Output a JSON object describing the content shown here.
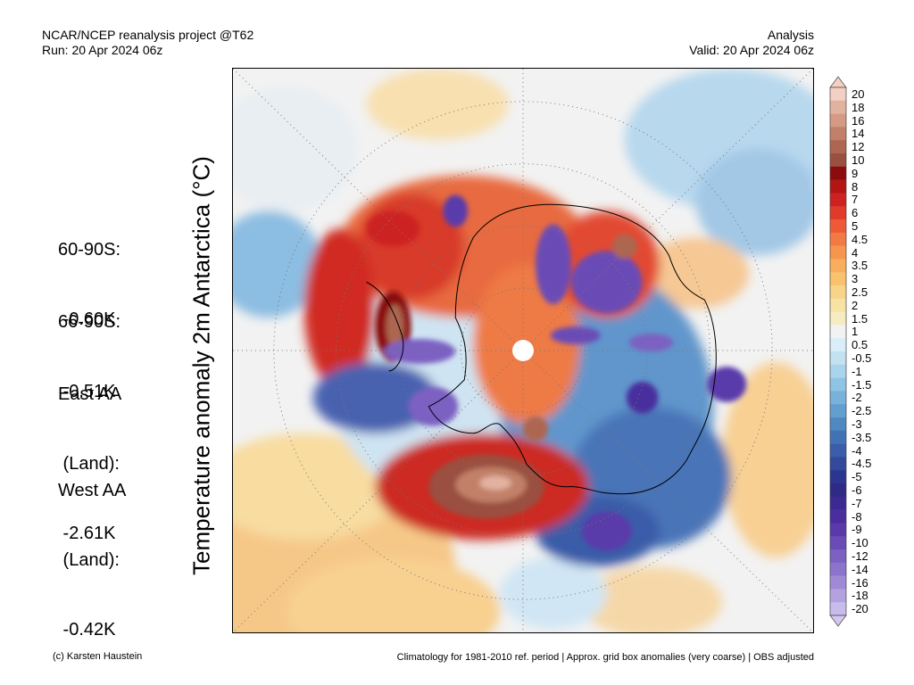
{
  "header": {
    "left_line1": "NCAR/NCEP reanalysis project @T62",
    "left_line2": "Run: 20 Apr 2024 06z",
    "right_line1": "Analysis",
    "right_line2": "Valid: 20 Apr 2024 06z"
  },
  "stats": [
    {
      "label": "60-90S:",
      "value": " -0.60K"
    },
    {
      "label": "66-90S:",
      "value": " -0.51K"
    },
    {
      "label": "East AA",
      "value": " (Land):",
      "value2": " -2.61K"
    },
    {
      "label": "West AA",
      "value": " (Land):",
      "value2": " -0.42K"
    }
  ],
  "axis_label": "Temperature anomaly 2m Antarctica (°C)",
  "colorbar": {
    "labels": [
      "20",
      "18",
      "16",
      "14",
      "12",
      "10",
      "9",
      "8",
      "7",
      "6",
      "5",
      "4.5",
      "4",
      "3.5",
      "3",
      "2.5",
      "2",
      "1.5",
      "1",
      "0.5",
      "-0.5",
      "-1",
      "-1.5",
      "-2",
      "-2.5",
      "-3",
      "-3.5",
      "-4",
      "-4.5",
      "-5",
      "-6",
      "-7",
      "-8",
      "-9",
      "-10",
      "-12",
      "-14",
      "-16",
      "-18",
      "-20"
    ],
    "colors": [
      "#f2d0c4",
      "#e2b2a0",
      "#d49a84",
      "#c28068",
      "#ad6650",
      "#9a5040",
      "#8a0c0c",
      "#b31414",
      "#cc2222",
      "#e03a2a",
      "#ee5a38",
      "#f27a44",
      "#f5954e",
      "#f8ae5c",
      "#f8c26e",
      "#f8d488",
      "#f8e2a4",
      "#f6ecc2",
      "#f2f2f2",
      "#d8eef8",
      "#c2e2f2",
      "#aad4ec",
      "#90c4e4",
      "#78b2da",
      "#629fcf",
      "#5088c2",
      "#4272b6",
      "#3a5eaa",
      "#32499c",
      "#2a3690",
      "#2e2a86",
      "#3c2a92",
      "#4a2e9e",
      "#5a3aaa",
      "#6a4cb6",
      "#7c60c2",
      "#8c74cc",
      "#a08ad6",
      "#b4a2e0",
      "#c8bcec"
    ],
    "upper_color": "#f6cfc2",
    "lower_color": "#d4c8f2"
  },
  "footer": {
    "left": "(c) Karsten Haustein",
    "right": "Climatology for 1981-2010 ref. period | Approx. grid box anomalies (very coarse) | OBS adjusted"
  }
}
